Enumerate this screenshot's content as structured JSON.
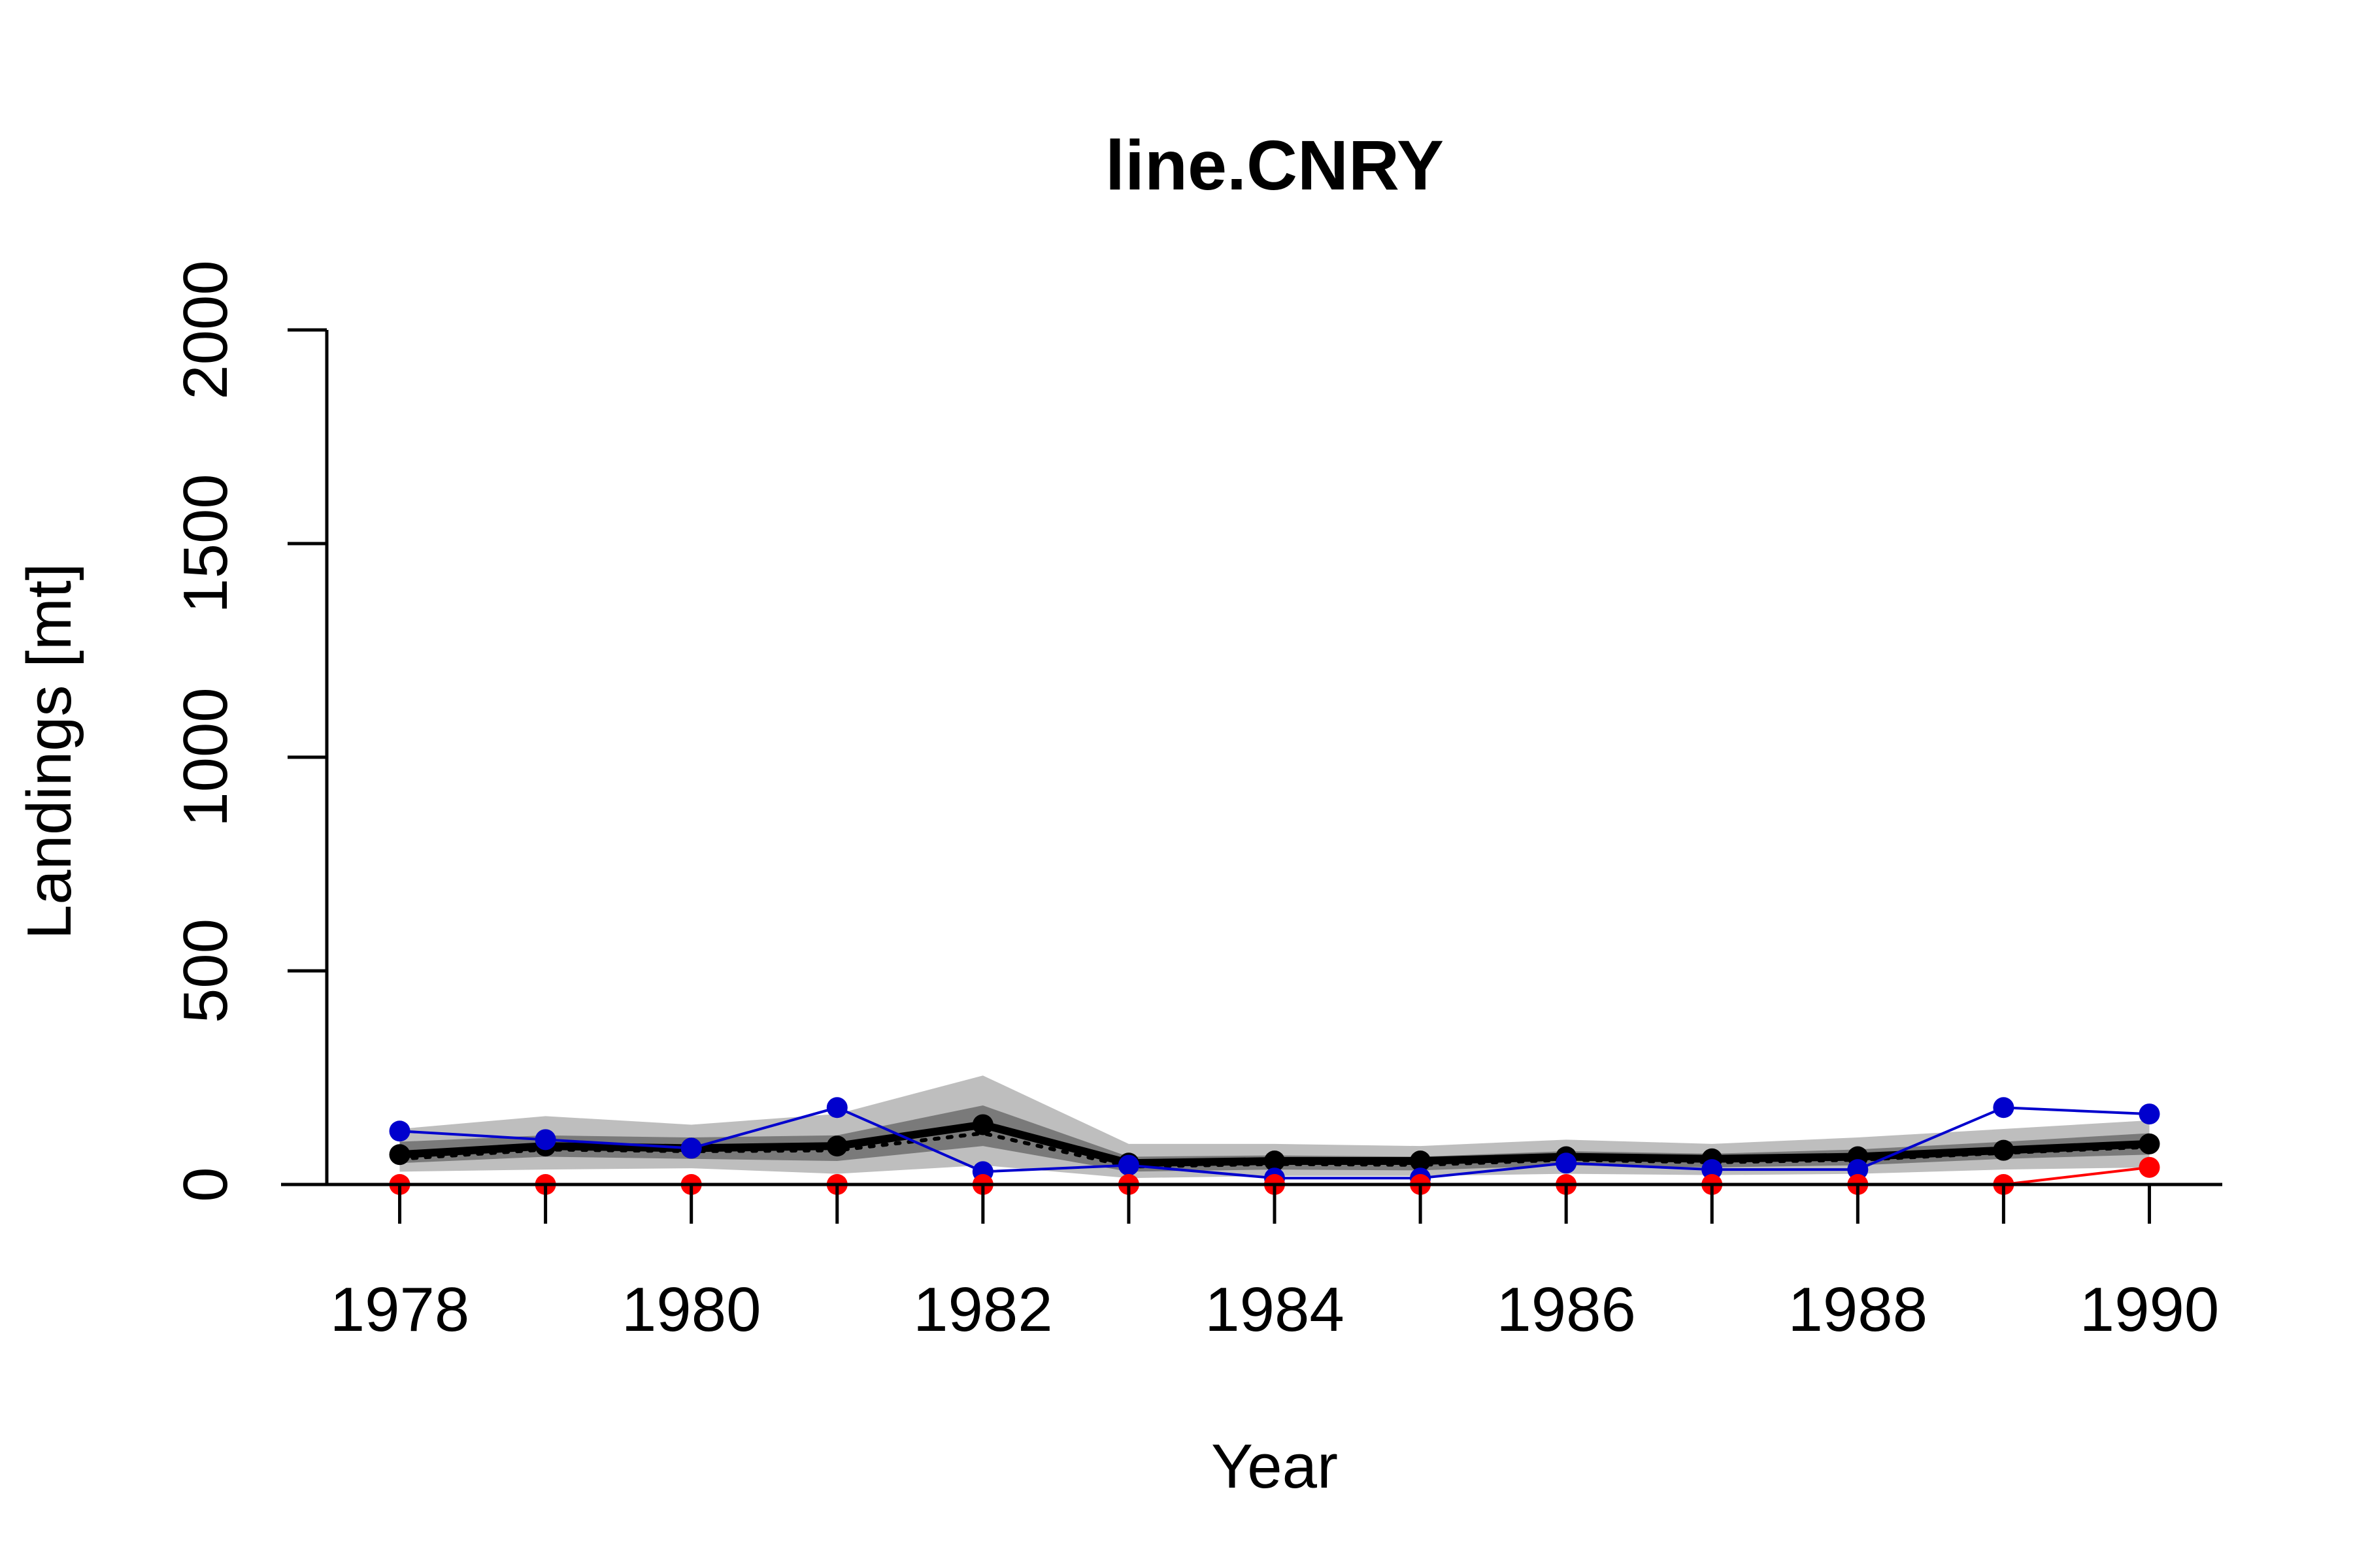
{
  "chart_data": {
    "type": "line",
    "title": "line.CNRY",
    "xlabel": "Year",
    "ylabel": "Landings [mt]",
    "xlim": [
      1977.5,
      1990.5
    ],
    "ylim": [
      0,
      2000
    ],
    "x_ticks": [
      1978,
      1980,
      1982,
      1984,
      1986,
      1988,
      1990
    ],
    "y_ticks": [
      0,
      500,
      1000,
      1500,
      2000
    ],
    "grid": false,
    "x": [
      1978,
      1979,
      1980,
      1981,
      1982,
      1983,
      1984,
      1985,
      1986,
      1987,
      1988,
      1989,
      1990
    ],
    "bands": [
      {
        "color": "#bebebe",
        "lower": [
          30,
          35,
          38,
          25,
          45,
          15,
          20,
          20,
          25,
          22,
          25,
          35,
          40
        ],
        "upper": [
          130,
          160,
          140,
          165,
          255,
          95,
          95,
          90,
          105,
          95,
          110,
          130,
          150
        ]
      },
      {
        "color": "#7a7a7a",
        "lower": [
          50,
          65,
          60,
          55,
          90,
          30,
          35,
          33,
          45,
          40,
          45,
          60,
          70
        ],
        "upper": [
          100,
          115,
          110,
          115,
          185,
          65,
          68,
          65,
          78,
          72,
          82,
          100,
          120
        ]
      }
    ],
    "series": [
      {
        "color": "#000000",
        "style": "solid",
        "markers": true,
        "values": [
          70,
          90,
          85,
          90,
          140,
          50,
          55,
          55,
          65,
          60,
          65,
          80,
          95
        ]
      },
      {
        "color": "#000000",
        "style": "dotted",
        "markers": false,
        "values": [
          60,
          82,
          78,
          80,
          120,
          42,
          48,
          46,
          58,
          52,
          58,
          74,
          88
        ]
      },
      {
        "color": "#0000cd",
        "style": "solid",
        "markers": true,
        "values": [
          125,
          105,
          85,
          180,
          30,
          45,
          15,
          15,
          50,
          35,
          35,
          180,
          165
        ]
      },
      {
        "color": "#ff0000",
        "style": "solid",
        "markers": true,
        "values": [
          0,
          0,
          0,
          0,
          0,
          0,
          0,
          0,
          0,
          0,
          0,
          0,
          40
        ]
      }
    ]
  }
}
